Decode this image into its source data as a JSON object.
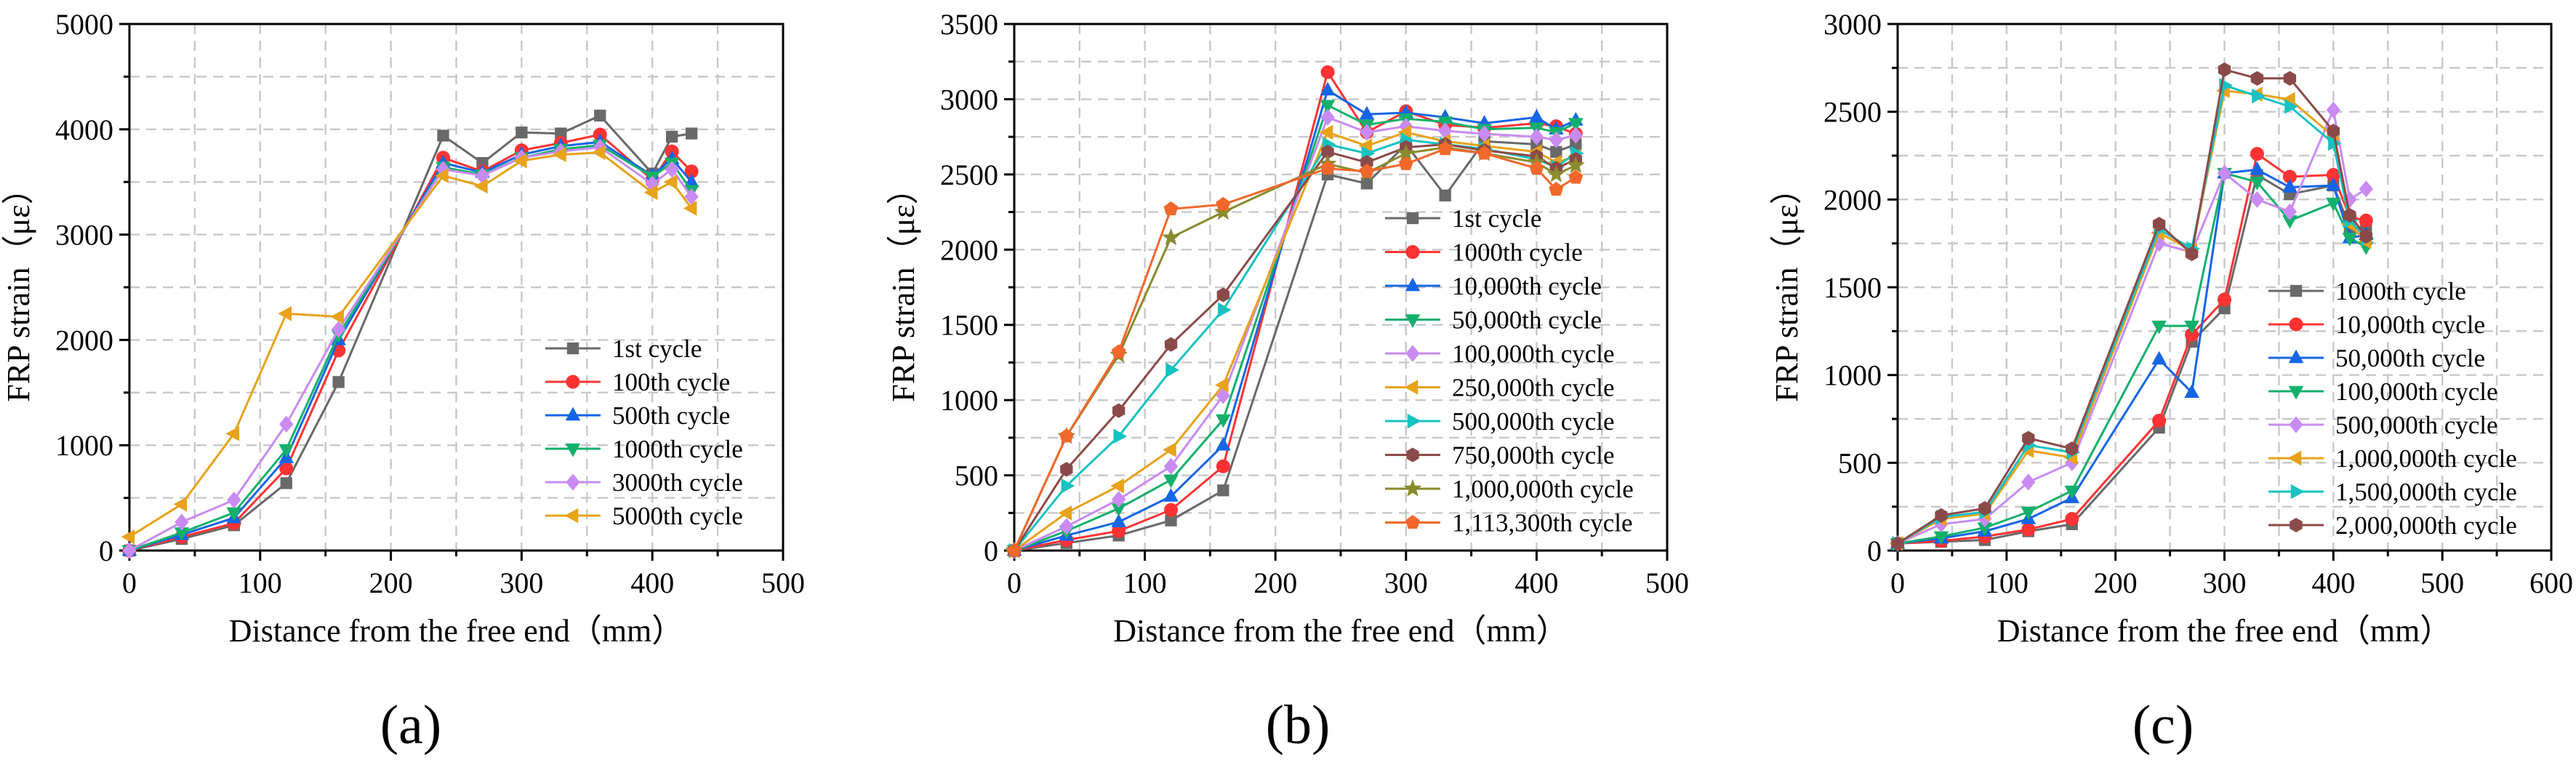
{
  "chart_data": [
    {
      "type": "line",
      "panel_label": "(a)",
      "xlabel": "Distance from the free end（mm）",
      "ylabel": "FRP strain（με）",
      "xlim": [
        0,
        500
      ],
      "ylim": [
        0,
        5000
      ],
      "xticks": [
        0,
        100,
        200,
        300,
        400,
        500
      ],
      "yticks": [
        0,
        1000,
        2000,
        3000,
        4000,
        5000
      ],
      "grid": true,
      "legend": "right",
      "series": [
        {
          "name": "1st cycle",
          "color": "#696969",
          "marker": "square",
          "x": [
            0,
            40,
            80,
            120,
            160,
            240,
            270,
            300,
            330,
            360,
            400,
            415,
            430
          ],
          "y": [
            0,
            110,
            240,
            640,
            1600,
            3940,
            3680,
            3970,
            3960,
            4130,
            3580,
            3930,
            3960
          ]
        },
        {
          "name": "100th cycle",
          "color": "#ff3333",
          "marker": "circle",
          "x": [
            0,
            40,
            80,
            120,
            160,
            240,
            270,
            300,
            330,
            360,
            400,
            415,
            430
          ],
          "y": [
            0,
            130,
            260,
            780,
            1900,
            3730,
            3600,
            3800,
            3870,
            3950,
            3520,
            3790,
            3600
          ]
        },
        {
          "name": "500th cycle",
          "color": "#1565e6",
          "marker": "triangle-up",
          "x": [
            0,
            40,
            80,
            120,
            160,
            240,
            270,
            300,
            330,
            360,
            400,
            415,
            430
          ],
          "y": [
            0,
            150,
            310,
            880,
            2000,
            3680,
            3590,
            3760,
            3840,
            3880,
            3560,
            3720,
            3500
          ]
        },
        {
          "name": "1000th cycle",
          "color": "#13b06b",
          "marker": "triangle-down",
          "x": [
            0,
            40,
            80,
            120,
            160,
            240,
            270,
            300,
            330,
            360,
            400,
            415,
            430
          ],
          "y": [
            0,
            170,
            360,
            960,
            2050,
            3640,
            3570,
            3730,
            3810,
            3850,
            3550,
            3680,
            3420
          ]
        },
        {
          "name": "3000th cycle",
          "color": "#c98bf2",
          "marker": "diamond",
          "x": [
            0,
            40,
            80,
            120,
            160,
            240,
            270,
            300,
            330,
            360,
            400,
            415,
            430
          ],
          "y": [
            0,
            270,
            480,
            1200,
            2100,
            3620,
            3560,
            3730,
            3790,
            3830,
            3480,
            3620,
            3360
          ]
        },
        {
          "name": "5000th cycle",
          "color": "#e8a21b",
          "marker": "triangle-left",
          "x": [
            0,
            40,
            80,
            120,
            160,
            240,
            270,
            300,
            330,
            360,
            400,
            415,
            430
          ],
          "y": [
            130,
            440,
            1110,
            2250,
            2220,
            3560,
            3460,
            3700,
            3760,
            3780,
            3400,
            3500,
            3250
          ]
        }
      ]
    },
    {
      "type": "line",
      "panel_label": "(b)",
      "xlabel": "Distance from the free end（mm）",
      "ylabel": "FRP strain（με）",
      "xlim": [
        0,
        500
      ],
      "ylim": [
        0,
        3500
      ],
      "xticks": [
        0,
        100,
        200,
        300,
        400,
        500
      ],
      "yticks": [
        0,
        500,
        1000,
        1500,
        2000,
        2500,
        3000,
        3500
      ],
      "grid": true,
      "legend": "right",
      "series": [
        {
          "name": "1st cycle",
          "color": "#696969",
          "marker": "square",
          "x": [
            0,
            40,
            80,
            120,
            160,
            240,
            270,
            300,
            330,
            360,
            400,
            415,
            430
          ],
          "y": [
            0,
            50,
            100,
            200,
            400,
            2500,
            2440,
            2700,
            2360,
            2720,
            2700,
            2650,
            2700
          ]
        },
        {
          "name": "1000th cycle",
          "color": "#ff3333",
          "marker": "circle",
          "x": [
            0,
            40,
            80,
            120,
            160,
            240,
            270,
            300,
            330,
            360,
            400,
            415,
            430
          ],
          "y": [
            0,
            70,
            130,
            270,
            560,
            3180,
            2780,
            2920,
            2830,
            2810,
            2840,
            2820,
            2770
          ]
        },
        {
          "name": "10,000th cycle",
          "color": "#1565e6",
          "marker": "triangle-up",
          "x": [
            0,
            40,
            80,
            120,
            160,
            240,
            270,
            300,
            330,
            360,
            400,
            415,
            430
          ],
          "y": [
            0,
            100,
            190,
            360,
            700,
            3060,
            2900,
            2910,
            2880,
            2840,
            2880,
            2800,
            2860
          ]
        },
        {
          "name": "50,000th cycle",
          "color": "#13b06b",
          "marker": "triangle-down",
          "x": [
            0,
            40,
            80,
            120,
            160,
            240,
            270,
            300,
            330,
            360,
            400,
            415,
            430
          ],
          "y": [
            0,
            130,
            280,
            470,
            870,
            2960,
            2830,
            2870,
            2850,
            2800,
            2810,
            2780,
            2840
          ]
        },
        {
          "name": "100,000th cycle",
          "color": "#c98bf2",
          "marker": "diamond",
          "x": [
            0,
            40,
            80,
            120,
            160,
            240,
            270,
            300,
            330,
            360,
            400,
            415,
            430
          ],
          "y": [
            0,
            160,
            340,
            560,
            1030,
            2880,
            2780,
            2820,
            2790,
            2770,
            2750,
            2730,
            2760
          ]
        },
        {
          "name": "250,000th cycle",
          "color": "#e8a21b",
          "marker": "triangle-left",
          "x": [
            0,
            40,
            80,
            120,
            160,
            240,
            270,
            300,
            330,
            360,
            400,
            415,
            430
          ],
          "y": [
            0,
            250,
            430,
            670,
            1100,
            2780,
            2690,
            2780,
            2720,
            2690,
            2650,
            2580,
            2620
          ]
        },
        {
          "name": "500,000th cycle",
          "color": "#17c2c2",
          "marker": "triangle-right",
          "x": [
            0,
            40,
            80,
            120,
            160,
            240,
            270,
            300,
            330,
            360,
            400,
            415,
            430
          ],
          "y": [
            0,
            430,
            760,
            1200,
            1600,
            2700,
            2640,
            2730,
            2700,
            2670,
            2600,
            2550,
            2640
          ]
        },
        {
          "name": "750,000th cycle",
          "color": "#8b4a4a",
          "marker": "hexagon",
          "x": [
            0,
            40,
            80,
            120,
            160,
            240,
            270,
            300,
            330,
            360,
            400,
            415,
            430
          ],
          "y": [
            0,
            540,
            930,
            1370,
            1700,
            2650,
            2580,
            2680,
            2700,
            2660,
            2620,
            2540,
            2600
          ]
        },
        {
          "name": "1,000,000th cycle",
          "color": "#8a8a2e",
          "marker": "star",
          "x": [
            0,
            40,
            80,
            120,
            160,
            240,
            270,
            300,
            330,
            360,
            400,
            415,
            430
          ],
          "y": [
            0,
            760,
            1300,
            2080,
            2250,
            2570,
            2510,
            2640,
            2680,
            2640,
            2580,
            2500,
            2560
          ]
        },
        {
          "name": "1,113,300th cycle",
          "color": "#f2682b",
          "marker": "pentagon",
          "x": [
            0,
            40,
            80,
            120,
            160,
            240,
            270,
            300,
            330,
            360,
            400,
            415,
            430
          ],
          "y": [
            0,
            760,
            1320,
            2270,
            2300,
            2540,
            2520,
            2570,
            2670,
            2640,
            2540,
            2400,
            2480
          ]
        }
      ]
    },
    {
      "type": "line",
      "panel_label": "(c)",
      "xlabel": "Distance from the free end（mm）",
      "ylabel": "FRP strain（με）",
      "xlim": [
        0,
        600
      ],
      "ylim": [
        0,
        3000
      ],
      "xticks": [
        0,
        100,
        200,
        300,
        400,
        500,
        600
      ],
      "yticks": [
        0,
        500,
        1000,
        1500,
        2000,
        2500,
        3000
      ],
      "grid": true,
      "legend": "bottom-right",
      "series": [
        {
          "name": "1000th cycle",
          "color": "#696969",
          "marker": "square",
          "x": [
            0,
            40,
            80,
            120,
            160,
            240,
            270,
            300,
            330,
            360,
            400,
            415,
            430
          ],
          "y": [
            40,
            50,
            60,
            110,
            150,
            700,
            1190,
            1380,
            2140,
            2030,
            2080,
            1840,
            1830
          ]
        },
        {
          "name": "10,000th cycle",
          "color": "#ff3333",
          "marker": "circle",
          "x": [
            0,
            40,
            80,
            120,
            160,
            240,
            270,
            300,
            330,
            360,
            400,
            415,
            430
          ],
          "y": [
            40,
            55,
            80,
            120,
            180,
            740,
            1230,
            1430,
            2260,
            2130,
            2140,
            1900,
            1880
          ]
        },
        {
          "name": "50,000th cycle",
          "color": "#1565e6",
          "marker": "triangle-up",
          "x": [
            0,
            40,
            80,
            120,
            160,
            240,
            270,
            300,
            330,
            360,
            400,
            415,
            430
          ],
          "y": [
            40,
            70,
            110,
            180,
            300,
            1090,
            900,
            2150,
            2170,
            2070,
            2080,
            1780,
            1800
          ]
        },
        {
          "name": "100,000th cycle",
          "color": "#13b06b",
          "marker": "triangle-down",
          "x": [
            0,
            40,
            80,
            120,
            160,
            240,
            270,
            300,
            330,
            360,
            400,
            415,
            430
          ],
          "y": [
            40,
            80,
            130,
            220,
            340,
            1280,
            1280,
            2150,
            2100,
            1880,
            1980,
            1780,
            1730
          ]
        },
        {
          "name": "500,000th cycle",
          "color": "#c98bf2",
          "marker": "diamond",
          "x": [
            0,
            40,
            80,
            120,
            160,
            240,
            270,
            300,
            330,
            360,
            400,
            415,
            430
          ],
          "y": [
            40,
            150,
            180,
            390,
            500,
            1750,
            1700,
            2150,
            2000,
            1930,
            2510,
            2000,
            2060
          ]
        },
        {
          "name": "1,000,000th cycle",
          "color": "#e8a21b",
          "marker": "triangle-left",
          "x": [
            0,
            40,
            80,
            120,
            160,
            240,
            270,
            300,
            330,
            360,
            400,
            415,
            430
          ],
          "y": [
            40,
            180,
            210,
            570,
            530,
            1810,
            1710,
            2620,
            2600,
            2570,
            2360,
            1860,
            1760
          ]
        },
        {
          "name": "1,500,000th cycle",
          "color": "#17c2c2",
          "marker": "triangle-right",
          "x": [
            0,
            40,
            80,
            120,
            160,
            240,
            270,
            300,
            330,
            360,
            400,
            415,
            430
          ],
          "y": [
            40,
            190,
            220,
            600,
            560,
            1830,
            1720,
            2650,
            2590,
            2530,
            2320,
            1880,
            1780
          ]
        },
        {
          "name": "2,000,000th cycle",
          "color": "#8b4a4a",
          "marker": "hexagon",
          "x": [
            0,
            40,
            80,
            120,
            160,
            240,
            270,
            300,
            330,
            360,
            400,
            415,
            430
          ],
          "y": [
            40,
            200,
            240,
            640,
            580,
            1860,
            1690,
            2740,
            2690,
            2690,
            2390,
            1910,
            1790
          ]
        }
      ]
    }
  ]
}
